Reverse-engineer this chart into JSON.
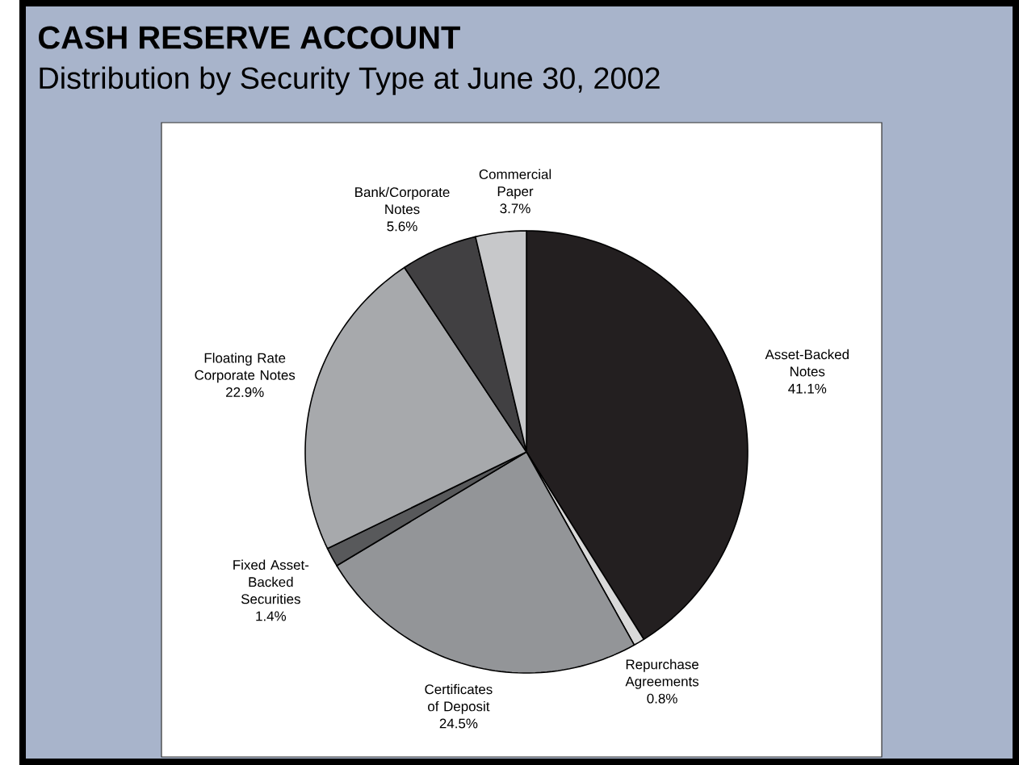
{
  "chart_data": {
    "type": "pie",
    "title": "CASH RESERVE ACCOUNT",
    "subtitle": "Distribution by Security Type at June 30, 2002",
    "categories": [
      "Asset-Backed Notes",
      "Repurchase Agreements",
      "Certificates of Deposit",
      "Fixed Asset-Backed Securities",
      "Floating Rate Corporate Notes",
      "Bank/Corporate Notes",
      "Commercial Paper"
    ],
    "values": [
      41.1,
      0.8,
      24.5,
      1.4,
      22.9,
      5.6,
      3.7
    ],
    "value_labels": [
      "41.1%",
      "0.8%",
      "24.5%",
      "1.4%",
      "22.9%",
      "5.6%",
      "3.7%"
    ],
    "colors": [
      "#231f20",
      "#d9d9d9",
      "#939598",
      "#58595b",
      "#a7a9ac",
      "#414042",
      "#c7c8ca"
    ],
    "legend": false
  }
}
